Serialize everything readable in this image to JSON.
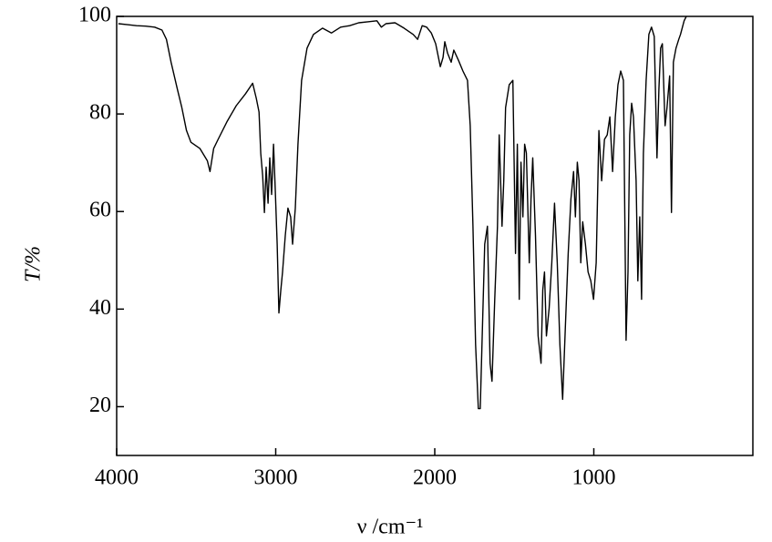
{
  "chart_data": {
    "type": "line",
    "x_label": "ν /cm⁻¹",
    "y_label": "T/%",
    "color": "#000000",
    "xlim": [
      4000,
      0
    ],
    "ylim": [
      10,
      100
    ],
    "xticks": [
      4000,
      3000,
      2000,
      1000
    ],
    "yticks": [
      20,
      40,
      60,
      80,
      100
    ],
    "grid": false,
    "x": [
      3989,
      3932,
      3875,
      3818,
      3761,
      3715,
      3687,
      3658,
      3618,
      3590,
      3561,
      3533,
      3476,
      3430,
      3413,
      3390,
      3362,
      3305,
      3248,
      3191,
      3145,
      3122,
      3105,
      3094,
      3082,
      3071,
      3060,
      3048,
      3037,
      3026,
      3014,
      3003,
      2991,
      2980,
      2968,
      2957,
      2940,
      2923,
      2906,
      2894,
      2877,
      2860,
      2837,
      2803,
      2763,
      2706,
      2649,
      2592,
      2535,
      2478,
      2421,
      2364,
      2336,
      2307,
      2250,
      2193,
      2136,
      2108,
      2079,
      2051,
      2022,
      1994,
      1965,
      1948,
      1937,
      1920,
      1897,
      1880,
      1851,
      1823,
      1794,
      1777,
      1760,
      1743,
      1726,
      1714,
      1703,
      1686,
      1669,
      1652,
      1640,
      1623,
      1606,
      1595,
      1577,
      1566,
      1555,
      1532,
      1509,
      1492,
      1481,
      1469,
      1458,
      1446,
      1435,
      1424,
      1406,
      1395,
      1384,
      1367,
      1350,
      1332,
      1321,
      1310,
      1298,
      1281,
      1264,
      1247,
      1230,
      1213,
      1196,
      1179,
      1161,
      1144,
      1127,
      1116,
      1104,
      1093,
      1082,
      1070,
      1053,
      1036,
      1019,
      1002,
      985,
      968,
      951,
      933,
      916,
      899,
      882,
      865,
      848,
      831,
      814,
      797,
      785,
      774,
      762,
      751,
      734,
      723,
      711,
      700,
      688,
      671,
      654,
      637,
      620,
      603,
      591,
      580,
      569,
      552,
      540,
      523,
      512,
      500,
      483,
      466,
      455,
      432,
      409
    ],
    "values": [
      98.5,
      98.3,
      98.1,
      98.0,
      97.8,
      97.2,
      95.3,
      90.6,
      85.0,
      81.3,
      76.6,
      74.2,
      72.9,
      70.4,
      68.2,
      72.9,
      74.8,
      78.5,
      81.7,
      84.1,
      86.3,
      83.2,
      80.4,
      71.9,
      67.3,
      59.8,
      69.1,
      61.7,
      71.0,
      63.5,
      73.8,
      64.5,
      53.3,
      39.2,
      43.9,
      47.6,
      55.1,
      60.7,
      58.9,
      53.3,
      60.7,
      73.8,
      86.9,
      93.5,
      96.3,
      97.6,
      96.6,
      97.8,
      98.1,
      98.7,
      98.9,
      99.1,
      97.8,
      98.5,
      98.7,
      97.6,
      96.3,
      95.3,
      98.1,
      97.8,
      96.6,
      94.4,
      89.7,
      91.6,
      94.8,
      92.5,
      90.6,
      93.1,
      91.0,
      88.8,
      86.9,
      77.6,
      57.0,
      32.7,
      19.6,
      19.6,
      32.7,
      53.3,
      57.0,
      28.9,
      25.2,
      42.0,
      57.0,
      75.7,
      57.0,
      66.3,
      81.3,
      86.0,
      86.9,
      51.4,
      73.8,
      42.0,
      70.1,
      58.9,
      73.8,
      72.0,
      49.5,
      62.6,
      71.0,
      55.1,
      34.5,
      28.9,
      43.9,
      47.6,
      34.5,
      40.2,
      49.5,
      61.7,
      49.5,
      32.7,
      21.5,
      36.4,
      51.4,
      62.6,
      68.2,
      58.9,
      70.1,
      66.3,
      49.5,
      57.9,
      53.3,
      47.6,
      45.8,
      42.0,
      49.5,
      76.6,
      66.3,
      74.8,
      75.7,
      79.4,
      68.2,
      79.4,
      86.0,
      88.8,
      86.9,
      33.6,
      47.6,
      75.7,
      82.2,
      79.4,
      66.3,
      45.8,
      58.9,
      42.0,
      71.9,
      86.9,
      96.3,
      97.8,
      95.9,
      71.0,
      85.0,
      93.5,
      94.4,
      77.6,
      81.3,
      87.8,
      59.8,
      90.6,
      93.5,
      95.3,
      96.3,
      99.1,
      100.6
    ]
  }
}
